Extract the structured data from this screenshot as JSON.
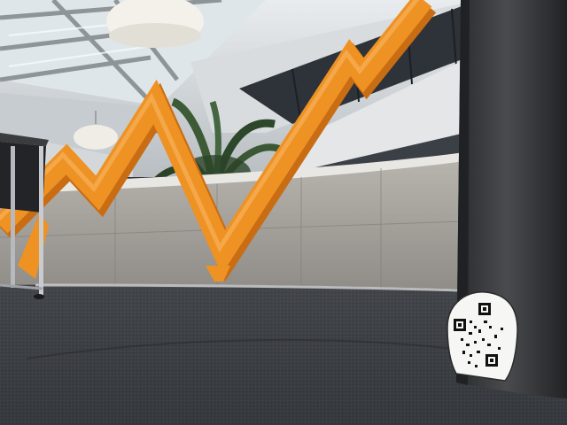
{
  "scene": {
    "description_visible_text": "",
    "objects": {
      "skylight": "glass-skylight",
      "pendant_lamps": "pendant-lamp",
      "orange_sculpture": "zigzag-sculpture",
      "plant": "potted-palm",
      "concrete_wall": "concrete-wall",
      "pillar": "dark-pillar",
      "qr_sticker": "qr-code-sticker",
      "table": "metal-side-table",
      "floor": "carpet-floor"
    },
    "colors": {
      "orange": "#ef9224",
      "orange_shadow": "#c96d14",
      "concrete": "#a8a49e",
      "carpet": "#3c3f44",
      "pillar": "#3a3b3d",
      "ceiling": "#cfd3d6"
    }
  }
}
